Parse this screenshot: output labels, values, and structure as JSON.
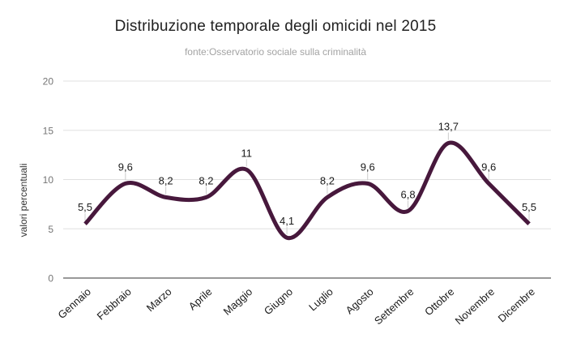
{
  "chart_data": {
    "type": "line",
    "smooth": true,
    "title": "Distribuzione temporale degli omicidi nel 2015",
    "subtitle": "fonte:Osservatorio sociale sulla criminalità",
    "xlabel": "",
    "ylabel": "valori percentuali",
    "categories": [
      "Gennaio",
      "Febbraio",
      "Marzo",
      "Aprile",
      "Maggio",
      "Giugno",
      "Luglio",
      "Agosto",
      "Settembre",
      "Ottobre",
      "Novembre",
      "Dicembre"
    ],
    "series": [
      {
        "name": "valori percentuali",
        "values": [
          5.5,
          9.6,
          8.2,
          8.2,
          11,
          4.1,
          8.2,
          9.6,
          6.8,
          13.7,
          9.6,
          5.5
        ],
        "point_labels": [
          "5,5",
          "9,6",
          "8,2",
          "8,2",
          "11",
          "4,1",
          "8,2",
          "9,6",
          "6,8",
          "13,7",
          "9,6",
          "5,5"
        ]
      }
    ],
    "ylim": [
      0,
      20
    ],
    "yticks": [
      0,
      5,
      10,
      15,
      20
    ],
    "grid": true,
    "legend": "none",
    "colors": {
      "line": "#47183c",
      "gridline": "#e0e0e0",
      "baseline": "#333333",
      "tick_label": "#757575",
      "x_label": "#1a1a1a",
      "data_label": "#1a1a1a",
      "label_connector": "#cccccc",
      "title": "#212121",
      "subtitle": "#a3a3a3"
    }
  }
}
